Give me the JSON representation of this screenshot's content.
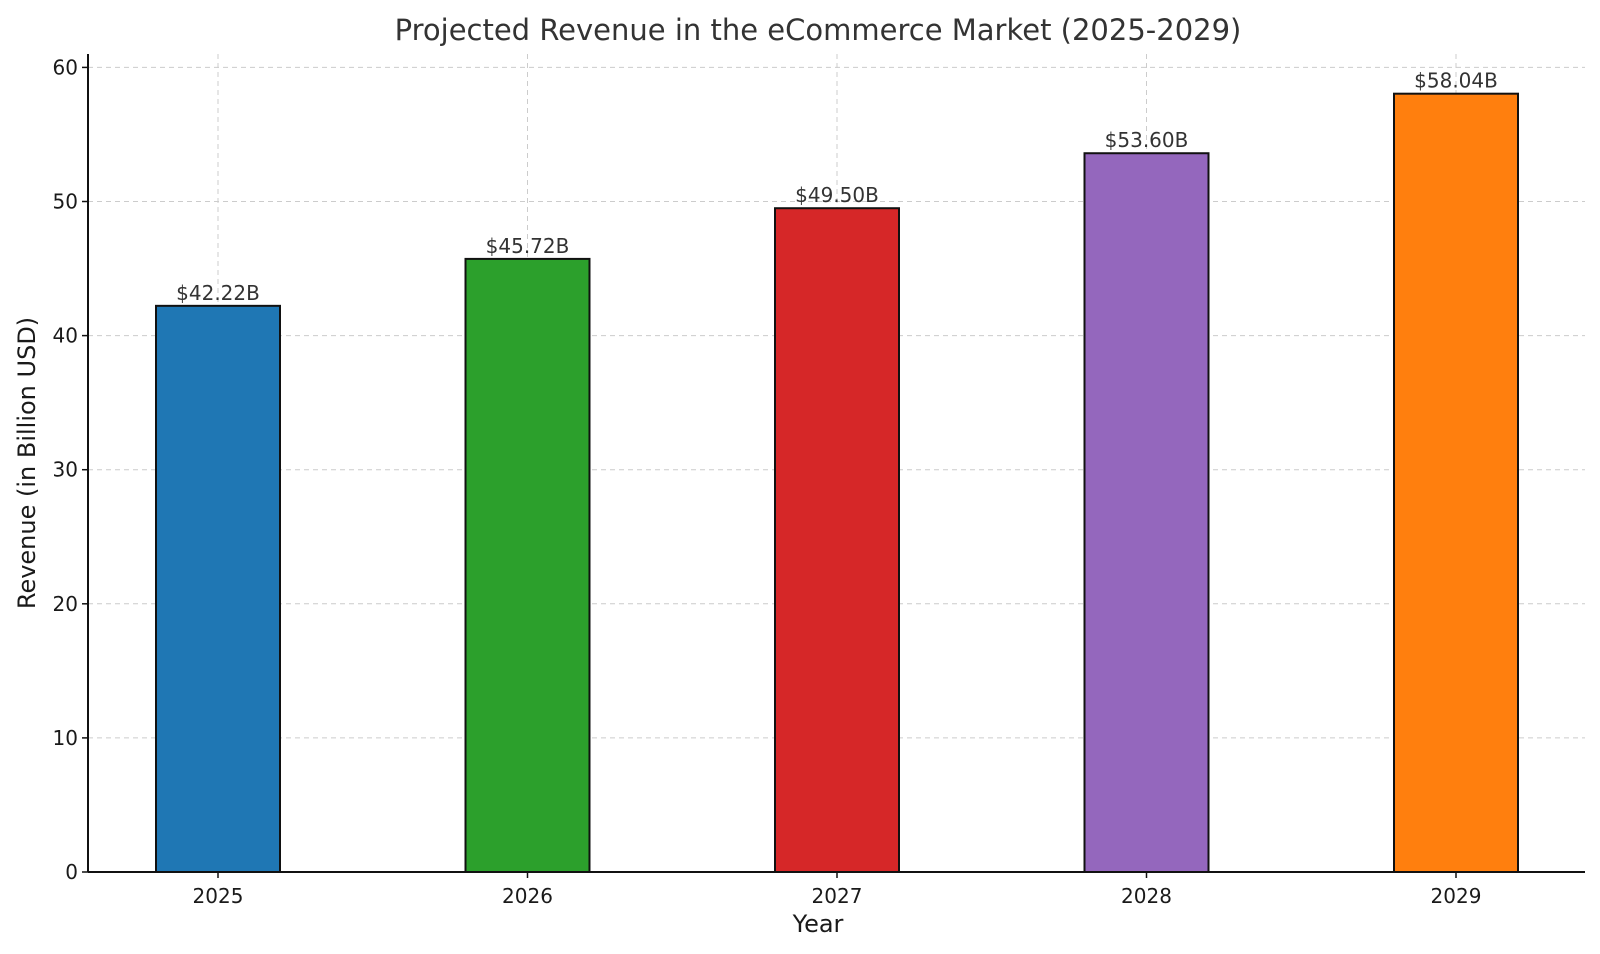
{
  "chart_data": {
    "type": "bar",
    "title": "Projected Revenue in the eCommerce Market (2025-2029)",
    "xlabel": "Year",
    "ylabel": "Revenue (in Billion USD)",
    "categories": [
      "2025",
      "2026",
      "2027",
      "2028",
      "2029"
    ],
    "values": [
      42.22,
      45.72,
      49.5,
      53.6,
      58.04
    ],
    "data_labels": [
      "$42.22B",
      "$45.72B",
      "$49.50B",
      "$53.60B",
      "$58.04B"
    ],
    "colors": [
      "#1f77b4",
      "#2ca02c",
      "#d62728",
      "#9467bd",
      "#ff7f0e"
    ],
    "ylim": [
      0,
      61
    ],
    "yticks": [
      0,
      10,
      20,
      30,
      40,
      50,
      60
    ],
    "ytick_labels": [
      "0",
      "10",
      "20",
      "30",
      "40",
      "50",
      "60"
    ],
    "grid": true,
    "legend": false
  }
}
